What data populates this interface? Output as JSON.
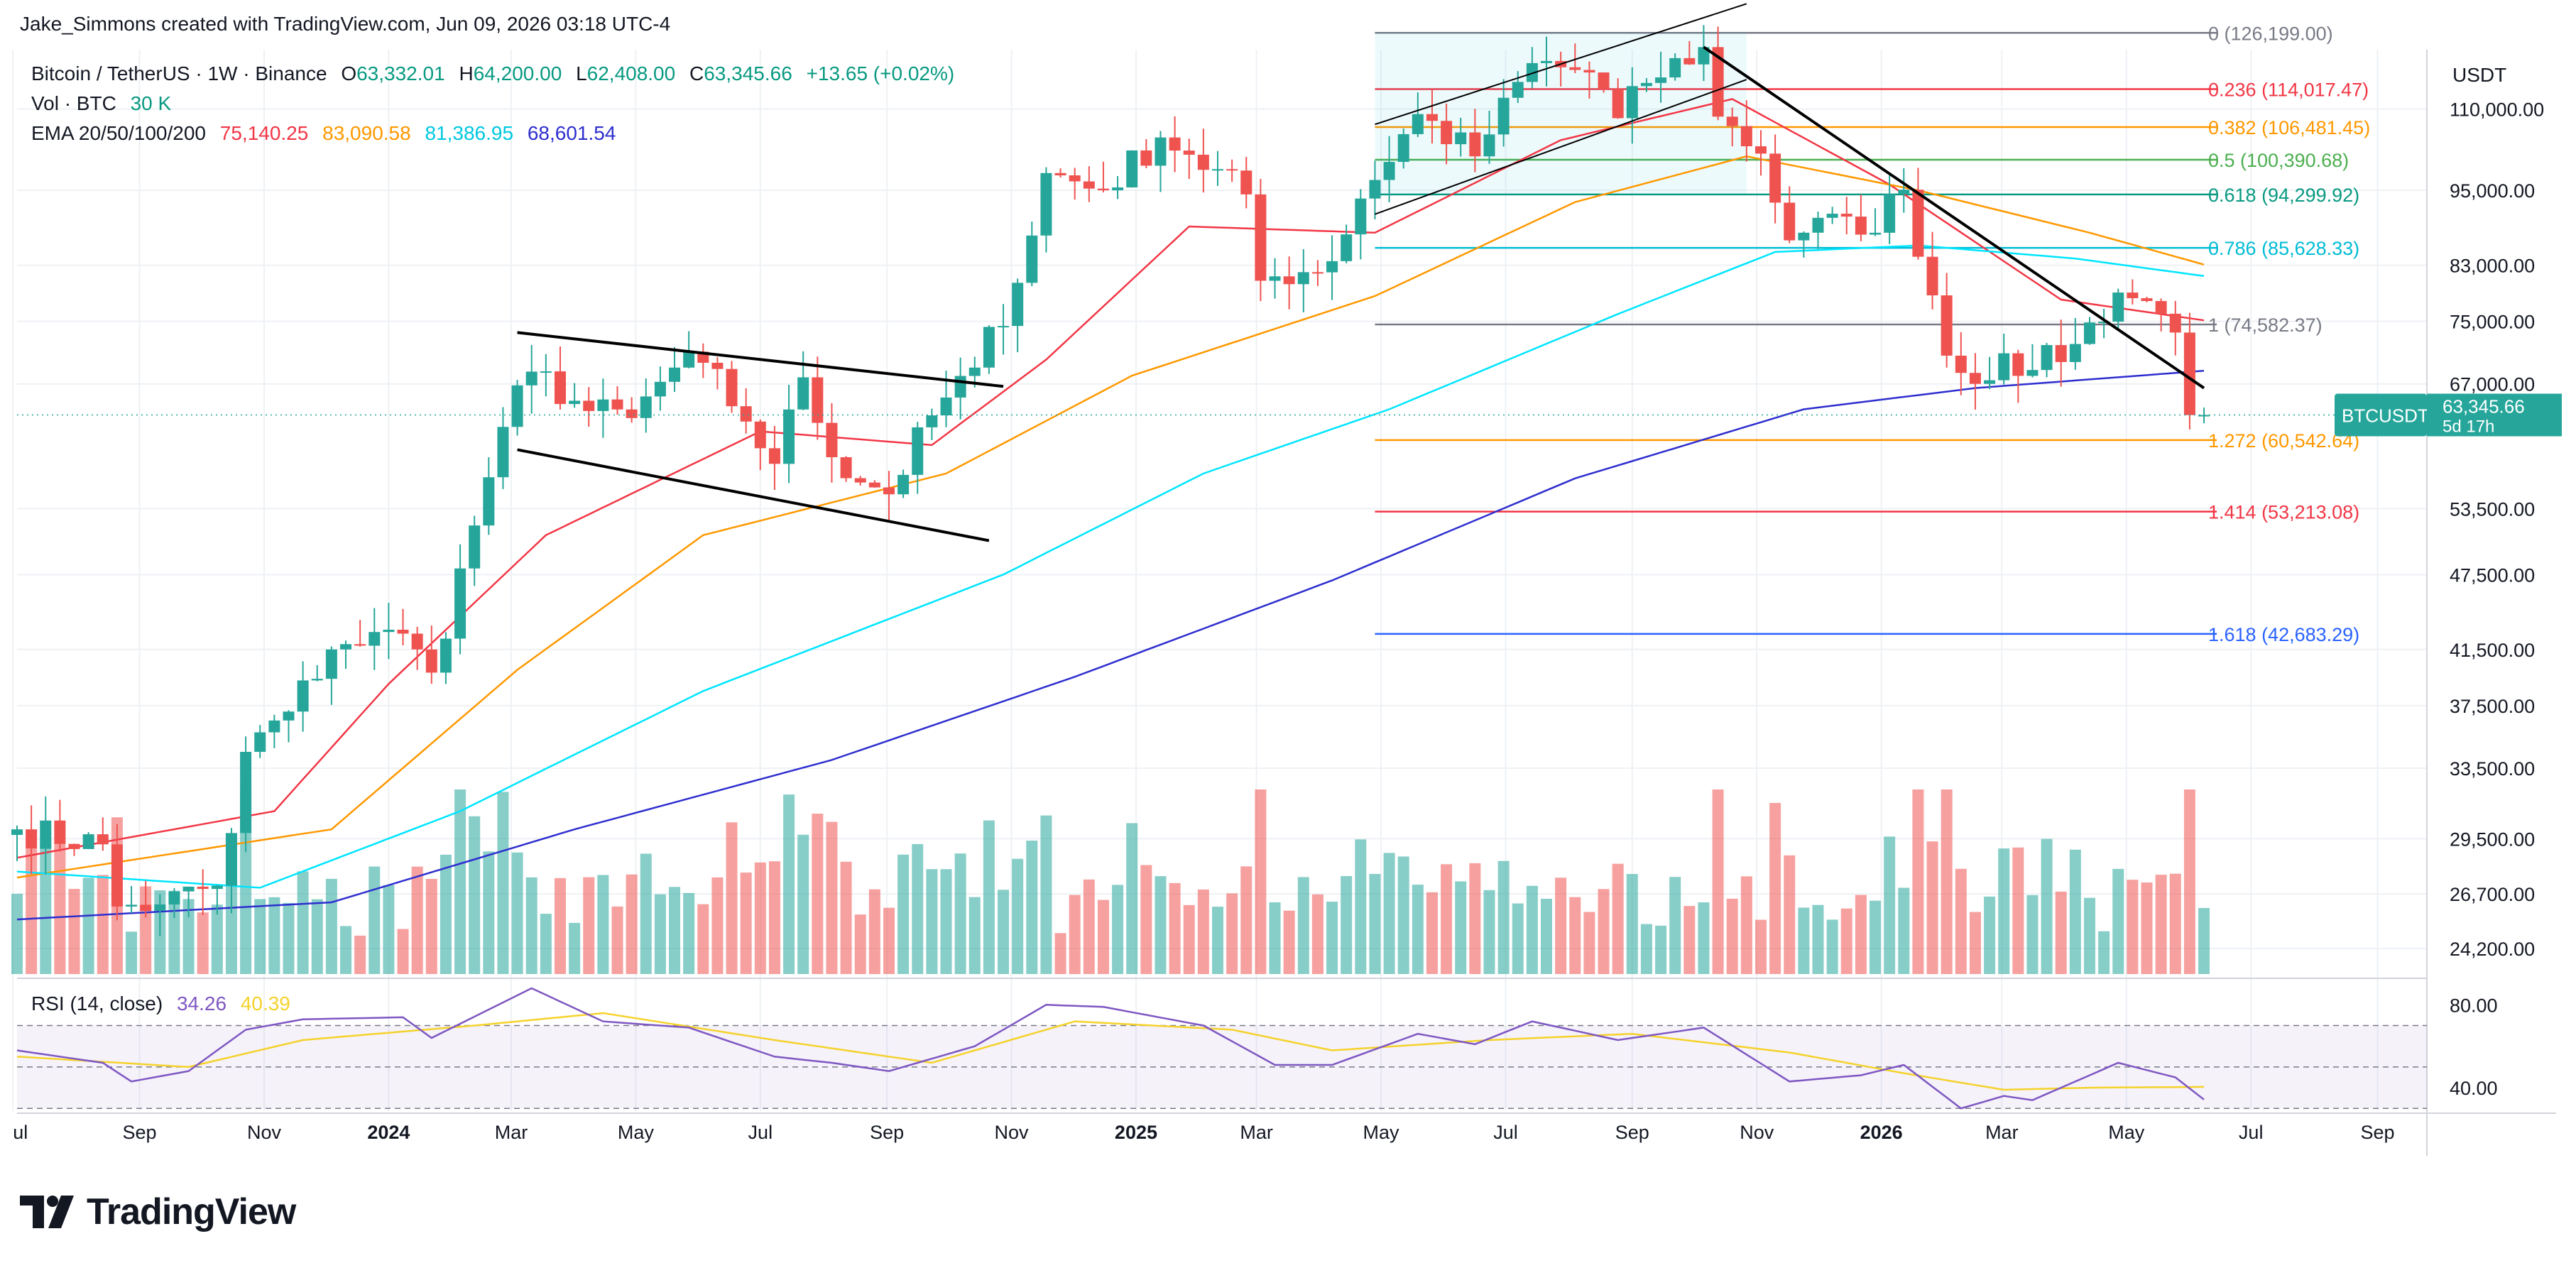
{
  "caption": "Jake_Simmons created with TradingView.com, Jun 09, 2026 03:18 UTC-4",
  "legend": {
    "symbol": "Bitcoin / TetherUS · 1W · Binance",
    "o_label": "O",
    "o_value": "63,332.01",
    "h_label": "H",
    "h_value": "64,200.00",
    "l_label": "L",
    "l_value": "62,408.00",
    "c_label": "C",
    "c_value": "63,345.66",
    "change": "+13.65 (+0.02%)",
    "vol_label": "Vol · BTC",
    "vol_value": "30 K",
    "ema_label": "EMA 20/50/100/200",
    "ema_values": [
      "75,140.25",
      "83,090.58",
      "81,386.95",
      "68,601.54"
    ]
  },
  "currency": "USDT",
  "rsi": {
    "label": "RSI (14, close)",
    "value": "34.26",
    "ma_value": "40.39",
    "ticks": [
      "80.00",
      "40.00"
    ]
  },
  "colors": {
    "up": "#26a69a",
    "down": "#ef5350",
    "ema20": "#f23645",
    "ema50": "#ff9800",
    "ema100": "#00e5ff",
    "ema200": "#2e2ecf",
    "rsi": "#7e57c2",
    "rsi_ma": "#f5d22b",
    "fib_1272": "#ff9800"
  },
  "price_tag": {
    "symbol": "BTCUSDT",
    "price": "63,345.66",
    "countdown": "5d 17h"
  },
  "brand": "TradingView",
  "chart_data": {
    "type": "candlestick",
    "timeframe": "1W",
    "y_scale": "log",
    "y_ticks": [
      110000,
      95000,
      83000,
      75000,
      67000,
      53500,
      47500,
      41500,
      37500,
      33500,
      29500,
      26700,
      24200
    ],
    "y_tick_labels": [
      "110,000.00",
      "95,000.00",
      "83,000.00",
      "75,000.00",
      "67,000.00",
      "53,500.00",
      "47,500.00",
      "41,500.00",
      "37,500.00",
      "33,500.00",
      "29,500.00",
      "26,700.00",
      "24,200.00"
    ],
    "x_tick_labels": [
      "ul",
      "Sep",
      "Nov",
      "2024",
      "Mar",
      "May",
      "Jul",
      "Sep",
      "Nov",
      "2025",
      "Mar",
      "May",
      "Jul",
      "Sep",
      "Nov",
      "2026",
      "Mar",
      "May",
      "Jul",
      "Sep"
    ],
    "x_tick_bold": [
      "2024",
      "2025",
      "2026"
    ],
    "anchors": [
      {
        "d": "2023-07-03",
        "p": 30000
      },
      {
        "d": "2023-08-14",
        "p": 29200
      },
      {
        "d": "2023-08-21",
        "p": 26100
      },
      {
        "d": "2023-09-11",
        "p": 26200
      },
      {
        "d": "2023-10-09",
        "p": 27100
      },
      {
        "d": "2023-10-16",
        "p": 29800
      },
      {
        "d": "2023-10-23",
        "p": 34500
      },
      {
        "d": "2023-11-13",
        "p": 37100
      },
      {
        "d": "2023-12-04",
        "p": 41500
      },
      {
        "d": "2023-12-11",
        "p": 41900
      },
      {
        "d": "2024-01-08",
        "p": 42700
      },
      {
        "d": "2024-01-15",
        "p": 41500
      },
      {
        "d": "2024-01-22",
        "p": 39800
      },
      {
        "d": "2024-02-12",
        "p": 51900
      },
      {
        "d": "2024-02-26",
        "p": 62000
      },
      {
        "d": "2024-03-11",
        "p": 68500
      },
      {
        "d": "2024-04-08",
        "p": 63800
      },
      {
        "d": "2024-04-29",
        "p": 63000
      },
      {
        "d": "2024-05-20",
        "p": 69000
      },
      {
        "d": "2024-06-03",
        "p": 69600
      },
      {
        "d": "2024-06-24",
        "p": 62600
      },
      {
        "d": "2024-07-08",
        "p": 58000
      },
      {
        "d": "2024-07-22",
        "p": 67800
      },
      {
        "d": "2024-08-05",
        "p": 58700
      },
      {
        "d": "2024-09-02",
        "p": 54900
      },
      {
        "d": "2024-09-23",
        "p": 63300
      },
      {
        "d": "2024-10-14",
        "p": 69000
      },
      {
        "d": "2024-11-04",
        "p": 80400
      },
      {
        "d": "2024-11-18",
        "p": 98000
      },
      {
        "d": "2024-12-16",
        "p": 95000
      },
      {
        "d": "2025-01-13",
        "p": 104500
      },
      {
        "d": "2025-01-27",
        "p": 101300
      },
      {
        "d": "2025-02-24",
        "p": 94300
      },
      {
        "d": "2025-03-03",
        "p": 80700
      },
      {
        "d": "2025-04-07",
        "p": 83600
      },
      {
        "d": "2025-04-21",
        "p": 93600
      },
      {
        "d": "2025-05-19",
        "p": 109000
      },
      {
        "d": "2025-06-16",
        "p": 101000
      },
      {
        "d": "2025-07-14",
        "p": 119500
      },
      {
        "d": "2025-08-11",
        "p": 117500
      },
      {
        "d": "2025-08-25",
        "p": 108200
      },
      {
        "d": "2025-09-08",
        "p": 115300
      },
      {
        "d": "2025-10-06",
        "p": 123000
      },
      {
        "d": "2025-10-13",
        "p": 108500
      },
      {
        "d": "2025-11-03",
        "p": 101500
      },
      {
        "d": "2025-11-17",
        "p": 86800
      },
      {
        "d": "2025-12-01",
        "p": 90400
      },
      {
        "d": "2025-12-22",
        "p": 87700
      },
      {
        "d": "2026-01-12",
        "p": 95100
      },
      {
        "d": "2026-01-26",
        "p": 78600
      },
      {
        "d": "2026-02-02",
        "p": 70500
      },
      {
        "d": "2026-02-16",
        "p": 67000
      },
      {
        "d": "2026-03-02",
        "p": 70800
      },
      {
        "d": "2026-03-16",
        "p": 68700
      },
      {
        "d": "2026-04-06",
        "p": 72000
      },
      {
        "d": "2026-04-27",
        "p": 79000
      },
      {
        "d": "2026-05-11",
        "p": 77800
      },
      {
        "d": "2026-05-25",
        "p": 73500
      },
      {
        "d": "2026-06-01",
        "p": 63332
      },
      {
        "d": "2026-06-08",
        "p": 63345.66
      }
    ],
    "last_candle": {
      "open": 63332.01,
      "high": 64200.0,
      "low": 62408.0,
      "close": 63345.66
    },
    "ema": {
      "ema20": [
        {
          "d": "2023-07-03",
          "p": 28500
        },
        {
          "d": "2023-11-06",
          "p": 31000
        },
        {
          "d": "2024-01-01",
          "p": 39000
        },
        {
          "d": "2024-03-18",
          "p": 51000
        },
        {
          "d": "2024-07-01",
          "p": 61500
        },
        {
          "d": "2024-09-23",
          "p": 60000
        },
        {
          "d": "2024-11-18",
          "p": 70000
        },
        {
          "d": "2025-01-27",
          "p": 89000
        },
        {
          "d": "2025-04-28",
          "p": 88000
        },
        {
          "d": "2025-07-28",
          "p": 104000
        },
        {
          "d": "2025-10-20",
          "p": 112000
        },
        {
          "d": "2026-01-05",
          "p": 96000
        },
        {
          "d": "2026-03-30",
          "p": 78000
        },
        {
          "d": "2026-06-08",
          "p": 75140.25
        }
      ],
      "ema50": [
        {
          "d": "2023-07-03",
          "p": 27500
        },
        {
          "d": "2023-12-04",
          "p": 30000
        },
        {
          "d": "2024-03-04",
          "p": 40000
        },
        {
          "d": "2024-06-03",
          "p": 51000
        },
        {
          "d": "2024-09-30",
          "p": 57000
        },
        {
          "d": "2024-12-30",
          "p": 68000
        },
        {
          "d": "2025-04-28",
          "p": 78500
        },
        {
          "d": "2025-08-04",
          "p": 93000
        },
        {
          "d": "2025-10-27",
          "p": 101000
        },
        {
          "d": "2026-01-19",
          "p": 95000
        },
        {
          "d": "2026-04-13",
          "p": 88000
        },
        {
          "d": "2026-06-08",
          "p": 83090.58
        }
      ],
      "ema100": [
        {
          "d": "2023-07-03",
          "p": 27800
        },
        {
          "d": "2023-10-30",
          "p": 27000
        },
        {
          "d": "2024-02-05",
          "p": 31000
        },
        {
          "d": "2024-06-03",
          "p": 38500
        },
        {
          "d": "2024-10-28",
          "p": 47500
        },
        {
          "d": "2025-02-03",
          "p": 57000
        },
        {
          "d": "2025-05-05",
          "p": 64000
        },
        {
          "d": "2025-08-25",
          "p": 76000
        },
        {
          "d": "2025-11-10",
          "p": 85000
        },
        {
          "d": "2026-01-19",
          "p": 86000
        },
        {
          "d": "2026-04-06",
          "p": 84000
        },
        {
          "d": "2026-06-08",
          "p": 81386.95
        }
      ],
      "ema200": [
        {
          "d": "2023-07-03",
          "p": 25500
        },
        {
          "d": "2023-12-04",
          "p": 26300
        },
        {
          "d": "2024-04-01",
          "p": 30000
        },
        {
          "d": "2024-08-05",
          "p": 34000
        },
        {
          "d": "2024-12-02",
          "p": 39500
        },
        {
          "d": "2025-04-07",
          "p": 47000
        },
        {
          "d": "2025-08-04",
          "p": 56500
        },
        {
          "d": "2025-11-24",
          "p": 64000
        },
        {
          "d": "2026-02-16",
          "p": 66500
        },
        {
          "d": "2026-06-08",
          "p": 68601.54
        }
      ]
    },
    "fib_levels": [
      {
        "ratio": "0",
        "price": 126199.0,
        "label": "0 (126,199.00)",
        "color": "#787b86"
      },
      {
        "ratio": "0.236",
        "price": 114017.47,
        "label": "0.236 (114,017.47)",
        "color": "#f23645"
      },
      {
        "ratio": "0.382",
        "price": 106481.45,
        "label": "0.382 (106,481.45)",
        "color": "#ff9800"
      },
      {
        "ratio": "0.5",
        "price": 100390.68,
        "label": "0.5 (100,390.68)",
        "color": "#4caf50"
      },
      {
        "ratio": "0.618",
        "price": 94299.92,
        "label": "0.618 (94,299.92)",
        "color": "#089981"
      },
      {
        "ratio": "0.786",
        "price": 85628.33,
        "label": "0.786 (85,628.33)",
        "color": "#00bcd4"
      },
      {
        "ratio": "1",
        "price": 74582.37,
        "label": "1 (74,582.37)",
        "color": "#787b86"
      },
      {
        "ratio": "1.272",
        "price": 60542.64,
        "label": "1.272 (60,542.64)",
        "color": "#ff9800"
      },
      {
        "ratio": "1.414",
        "price": 53213.08,
        "label": "1.414 (53,213.08)",
        "color": "#f23645"
      },
      {
        "ratio": "1.618",
        "price": 42683.29,
        "label": "1.618 (42,683.29)",
        "color": "#2962ff"
      }
    ],
    "trendlines": [
      {
        "from": {
          "d": "2024-03-04",
          "p": 73500
        },
        "to": {
          "d": "2024-10-28",
          "p": 66700
        }
      },
      {
        "from": {
          "d": "2024-03-04",
          "p": 59500
        },
        "to": {
          "d": "2024-10-21",
          "p": 50500
        }
      },
      {
        "from": {
          "d": "2025-10-06",
          "p": 123000
        },
        "to": {
          "d": "2026-06-08",
          "p": 66500
        }
      },
      {
        "from": {
          "d": "2025-04-28",
          "p": 107000
        },
        "to": {
          "d": "2025-10-27",
          "p": 133000
        }
      },
      {
        "from": {
          "d": "2025-04-28",
          "p": 91000
        },
        "to": {
          "d": "2025-10-27",
          "p": 116000
        }
      }
    ],
    "rsi": [
      {
        "d": "2023-07-03",
        "p": 58
      },
      {
        "d": "2023-08-14",
        "p": 52
      },
      {
        "d": "2023-08-28",
        "p": 43
      },
      {
        "d": "2023-09-25",
        "p": 48
      },
      {
        "d": "2023-10-23",
        "p": 68
      },
      {
        "d": "2023-11-20",
        "p": 73
      },
      {
        "d": "2024-01-08",
        "p": 74
      },
      {
        "d": "2024-01-22",
        "p": 64
      },
      {
        "d": "2024-03-11",
        "p": 88
      },
      {
        "d": "2024-04-15",
        "p": 72
      },
      {
        "d": "2024-05-27",
        "p": 69
      },
      {
        "d": "2024-07-08",
        "p": 55
      },
      {
        "d": "2024-08-05",
        "p": 52
      },
      {
        "d": "2024-09-02",
        "p": 48
      },
      {
        "d": "2024-10-14",
        "p": 60
      },
      {
        "d": "2024-11-18",
        "p": 80
      },
      {
        "d": "2024-12-16",
        "p": 79
      },
      {
        "d": "2025-02-03",
        "p": 70
      },
      {
        "d": "2025-03-10",
        "p": 51
      },
      {
        "d": "2025-04-07",
        "p": 51
      },
      {
        "d": "2025-05-19",
        "p": 66
      },
      {
        "d": "2025-06-16",
        "p": 61
      },
      {
        "d": "2025-07-14",
        "p": 72
      },
      {
        "d": "2025-08-25",
        "p": 63
      },
      {
        "d": "2025-10-06",
        "p": 69
      },
      {
        "d": "2025-11-17",
        "p": 43
      },
      {
        "d": "2025-12-22",
        "p": 46
      },
      {
        "d": "2026-01-12",
        "p": 51
      },
      {
        "d": "2026-02-09",
        "p": 30
      },
      {
        "d": "2026-03-02",
        "p": 36
      },
      {
        "d": "2026-03-16",
        "p": 34
      },
      {
        "d": "2026-04-27",
        "p": 52
      },
      {
        "d": "2026-05-25",
        "p": 45
      },
      {
        "d": "2026-06-08",
        "p": 34.26
      }
    ],
    "rsi_ma": [
      {
        "d": "2023-07-03",
        "p": 55
      },
      {
        "d": "2023-09-25",
        "p": 50
      },
      {
        "d": "2023-11-20",
        "p": 63
      },
      {
        "d": "2024-02-12",
        "p": 70
      },
      {
        "d": "2024-04-15",
        "p": 76
      },
      {
        "d": "2024-07-08",
        "p": 63
      },
      {
        "d": "2024-09-23",
        "p": 52
      },
      {
        "d": "2024-12-02",
        "p": 72
      },
      {
        "d": "2025-02-17",
        "p": 68
      },
      {
        "d": "2025-04-07",
        "p": 58
      },
      {
        "d": "2025-06-23",
        "p": 63
      },
      {
        "d": "2025-09-01",
        "p": 66
      },
      {
        "d": "2025-11-17",
        "p": 57
      },
      {
        "d": "2026-01-12",
        "p": 47
      },
      {
        "d": "2026-03-02",
        "p": 39
      },
      {
        "d": "2026-04-13",
        "p": 40
      },
      {
        "d": "2026-06-08",
        "p": 40.39
      }
    ],
    "rsi_bands": {
      "upper": 70,
      "middle": 50,
      "lower": 30
    }
  }
}
